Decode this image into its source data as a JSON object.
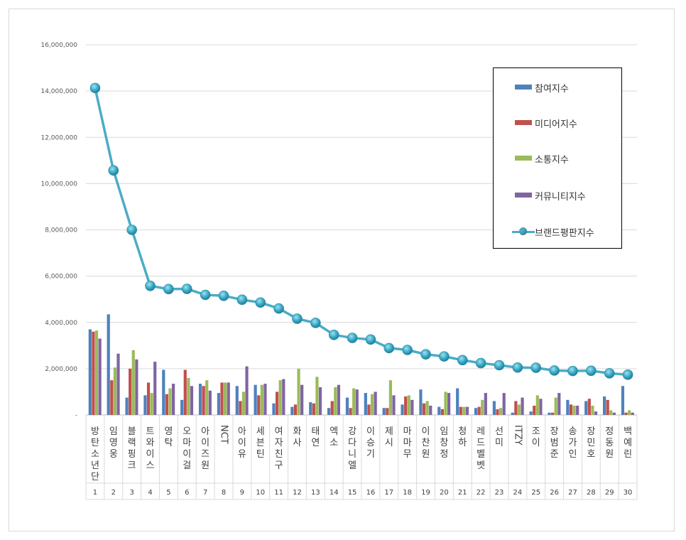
{
  "chart_data": {
    "type": "bar",
    "categories": [
      "방탄소년단",
      "임영웅",
      "블랙핑크",
      "트와이스",
      "영탁",
      "오마이걸",
      "아이즈원",
      "NCT",
      "아이유",
      "세븐틴",
      "여자친구",
      "화사",
      "태연",
      "엑소",
      "강다니엘",
      "이승기",
      "제시",
      "마마무",
      "이찬원",
      "임창정",
      "청하",
      "레드벨벳",
      "선미",
      "ITZY",
      "조이",
      "장범준",
      "송가인",
      "장민호",
      "정동원",
      "백예린"
    ],
    "ranks": [
      "1",
      "2",
      "3",
      "4",
      "5",
      "6",
      "7",
      "8",
      "9",
      "10",
      "11",
      "12",
      "13",
      "14",
      "15",
      "16",
      "17",
      "18",
      "19",
      "20",
      "21",
      "22",
      "23",
      "24",
      "25",
      "26",
      "27",
      "28",
      "29",
      "30"
    ],
    "series": [
      {
        "name": "참여지수",
        "color": "#4f81bd",
        "values": [
          3700000,
          4350000,
          750000,
          850000,
          1950000,
          650000,
          1350000,
          950000,
          1250000,
          1300000,
          500000,
          350000,
          550000,
          300000,
          750000,
          950000,
          300000,
          450000,
          1100000,
          350000,
          1150000,
          300000,
          600000,
          100000,
          150000,
          100000,
          650000,
          600000,
          800000,
          1250000
        ]
      },
      {
        "name": "미디어지수",
        "color": "#c0504d",
        "values": [
          3600000,
          1500000,
          2000000,
          1400000,
          900000,
          1950000,
          1250000,
          1400000,
          600000,
          850000,
          1000000,
          450000,
          500000,
          600000,
          300000,
          450000,
          300000,
          800000,
          500000,
          250000,
          350000,
          350000,
          250000,
          600000,
          400000,
          100000,
          450000,
          700000,
          650000,
          100000
        ]
      },
      {
        "name": "소통지수",
        "color": "#9bbb59",
        "values": [
          3650000,
          2050000,
          2800000,
          950000,
          1150000,
          1600000,
          1500000,
          1400000,
          1000000,
          1300000,
          1500000,
          2000000,
          1650000,
          1200000,
          1150000,
          900000,
          1500000,
          850000,
          600000,
          1000000,
          350000,
          650000,
          300000,
          450000,
          850000,
          750000,
          400000,
          400000,
          200000,
          200000
        ]
      },
      {
        "name": "커뮤니티지수",
        "color": "#8064a2",
        "values": [
          3300000,
          2650000,
          2400000,
          2300000,
          1350000,
          1250000,
          1050000,
          1400000,
          2100000,
          1350000,
          1550000,
          1300000,
          1200000,
          1300000,
          1100000,
          1000000,
          850000,
          650000,
          400000,
          950000,
          350000,
          950000,
          950000,
          750000,
          700000,
          950000,
          400000,
          150000,
          100000,
          100000
        ]
      }
    ],
    "line": {
      "name": "브랜드평판지수",
      "color": "#4bacc6",
      "values": [
        14130000,
        10570000,
        8000000,
        5580000,
        5440000,
        5450000,
        5190000,
        5150000,
        4980000,
        4860000,
        4600000,
        4160000,
        3980000,
        3460000,
        3330000,
        3260000,
        2890000,
        2810000,
        2620000,
        2530000,
        2370000,
        2240000,
        2150000,
        2050000,
        2040000,
        1920000,
        1900000,
        1910000,
        1800000,
        1740000
      ]
    },
    "y_ticks": [
      "-",
      "2,000,000",
      "4,000,000",
      "6,000,000",
      "8,000,000",
      "10,000,000",
      "12,000,000",
      "14,000,000",
      "16,000,000"
    ],
    "ylim": [
      0,
      16000000
    ],
    "grid": true,
    "legend_position": "top-right"
  }
}
